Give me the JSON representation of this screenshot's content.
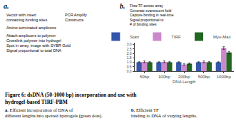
{
  "chart_data": {
    "type": "bar",
    "title": "Figure 6: dsDNA (50-1000 bp) incorporation and use with\nhydrogel-based TIRF-PBM",
    "categories": [
      "50bp",
      "100bp",
      "200bp",
      "500bp",
      "1000bp"
    ],
    "series": [
      {
        "name": "Start",
        "color": "#3355aa",
        "values": [
          1.0,
          1.0,
          1.0,
          1.0,
          1.0
        ],
        "errors": [
          0.06,
          0.06,
          0.06,
          0.06,
          0.06
        ]
      },
      {
        "name": "TIRF",
        "color": "#cc88cc",
        "values": [
          1.05,
          1.05,
          0.75,
          1.05,
          2.6
        ],
        "errors": [
          0.1,
          0.1,
          0.08,
          0.1,
          0.15
        ]
      },
      {
        "name": "Myo-Max",
        "color": "#226622",
        "values": [
          1.0,
          1.0,
          0.85,
          1.0,
          2.1
        ],
        "errors": [
          0.07,
          0.07,
          0.06,
          0.07,
          0.12
        ]
      }
    ],
    "xlabel": "DNA Length",
    "ylim": [
      0,
      3.2
    ],
    "yticks": [
      {
        "value": 0,
        "label": "0.0"
      },
      0.5,
      {
        "value": 1.0,
        "label": "1.0"
      },
      1.5,
      {
        "value": 2.0,
        "label": "2.0"
      },
      2.5,
      {
        "value": 3.0,
        "label": "3.0"
      }
    ],
    "grid": false,
    "legend": "upper left",
    "annotations": [
      "a.",
      "b.",
      "Vector with insert\ncontaining binding sites",
      "PCR Amplify\nConstructs",
      "Amino-terminated amplicons",
      "Attach amplicons to polymer\nCrosslink polymer into hydrogel\nSpot in array, image with SYBR Gold\nSignal proportional to total DNA",
      "Flow TF across array\nGenerate evanescent field\nCapture binding in real-time\nSignal proportional to\n# of binding sites",
      "a",
      ", Efficient incorporation of DNA of\ndifferent lengths into spotted hydrogels (green dots). ",
      "b",
      ", Efficient TF\nbinding to DNA of varying lengths."
    ]
  }
}
